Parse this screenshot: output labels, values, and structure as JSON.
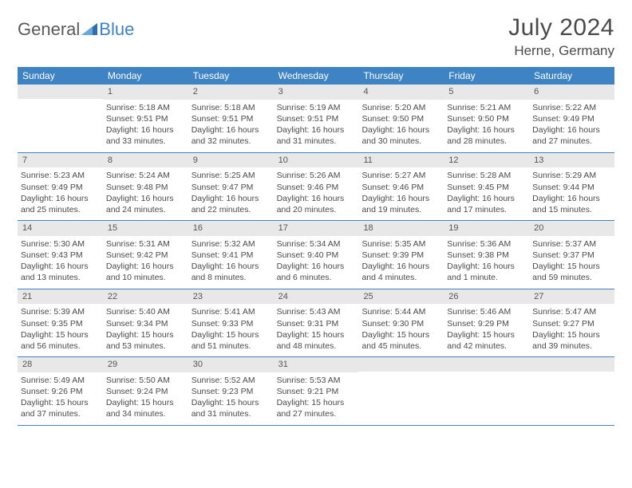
{
  "logo": {
    "gray": "General",
    "blue": "Blue"
  },
  "title": "July 2024",
  "location": "Herne, Germany",
  "colors": {
    "accent": "#3e83c4",
    "dayband": "#e8e8e8",
    "text": "#4a4a4a",
    "bg": "#ffffff"
  },
  "daysOfWeek": [
    "Sunday",
    "Monday",
    "Tuesday",
    "Wednesday",
    "Thursday",
    "Friday",
    "Saturday"
  ],
  "weeks": [
    [
      null,
      {
        "n": "1",
        "sr": "5:18 AM",
        "ss": "9:51 PM",
        "dl": "16 hours and 33 minutes."
      },
      {
        "n": "2",
        "sr": "5:18 AM",
        "ss": "9:51 PM",
        "dl": "16 hours and 32 minutes."
      },
      {
        "n": "3",
        "sr": "5:19 AM",
        "ss": "9:51 PM",
        "dl": "16 hours and 31 minutes."
      },
      {
        "n": "4",
        "sr": "5:20 AM",
        "ss": "9:50 PM",
        "dl": "16 hours and 30 minutes."
      },
      {
        "n": "5",
        "sr": "5:21 AM",
        "ss": "9:50 PM",
        "dl": "16 hours and 28 minutes."
      },
      {
        "n": "6",
        "sr": "5:22 AM",
        "ss": "9:49 PM",
        "dl": "16 hours and 27 minutes."
      }
    ],
    [
      {
        "n": "7",
        "sr": "5:23 AM",
        "ss": "9:49 PM",
        "dl": "16 hours and 25 minutes."
      },
      {
        "n": "8",
        "sr": "5:24 AM",
        "ss": "9:48 PM",
        "dl": "16 hours and 24 minutes."
      },
      {
        "n": "9",
        "sr": "5:25 AM",
        "ss": "9:47 PM",
        "dl": "16 hours and 22 minutes."
      },
      {
        "n": "10",
        "sr": "5:26 AM",
        "ss": "9:46 PM",
        "dl": "16 hours and 20 minutes."
      },
      {
        "n": "11",
        "sr": "5:27 AM",
        "ss": "9:46 PM",
        "dl": "16 hours and 19 minutes."
      },
      {
        "n": "12",
        "sr": "5:28 AM",
        "ss": "9:45 PM",
        "dl": "16 hours and 17 minutes."
      },
      {
        "n": "13",
        "sr": "5:29 AM",
        "ss": "9:44 PM",
        "dl": "16 hours and 15 minutes."
      }
    ],
    [
      {
        "n": "14",
        "sr": "5:30 AM",
        "ss": "9:43 PM",
        "dl": "16 hours and 13 minutes."
      },
      {
        "n": "15",
        "sr": "5:31 AM",
        "ss": "9:42 PM",
        "dl": "16 hours and 10 minutes."
      },
      {
        "n": "16",
        "sr": "5:32 AM",
        "ss": "9:41 PM",
        "dl": "16 hours and 8 minutes."
      },
      {
        "n": "17",
        "sr": "5:34 AM",
        "ss": "9:40 PM",
        "dl": "16 hours and 6 minutes."
      },
      {
        "n": "18",
        "sr": "5:35 AM",
        "ss": "9:39 PM",
        "dl": "16 hours and 4 minutes."
      },
      {
        "n": "19",
        "sr": "5:36 AM",
        "ss": "9:38 PM",
        "dl": "16 hours and 1 minute."
      },
      {
        "n": "20",
        "sr": "5:37 AM",
        "ss": "9:37 PM",
        "dl": "15 hours and 59 minutes."
      }
    ],
    [
      {
        "n": "21",
        "sr": "5:39 AM",
        "ss": "9:35 PM",
        "dl": "15 hours and 56 minutes."
      },
      {
        "n": "22",
        "sr": "5:40 AM",
        "ss": "9:34 PM",
        "dl": "15 hours and 53 minutes."
      },
      {
        "n": "23",
        "sr": "5:41 AM",
        "ss": "9:33 PM",
        "dl": "15 hours and 51 minutes."
      },
      {
        "n": "24",
        "sr": "5:43 AM",
        "ss": "9:31 PM",
        "dl": "15 hours and 48 minutes."
      },
      {
        "n": "25",
        "sr": "5:44 AM",
        "ss": "9:30 PM",
        "dl": "15 hours and 45 minutes."
      },
      {
        "n": "26",
        "sr": "5:46 AM",
        "ss": "9:29 PM",
        "dl": "15 hours and 42 minutes."
      },
      {
        "n": "27",
        "sr": "5:47 AM",
        "ss": "9:27 PM",
        "dl": "15 hours and 39 minutes."
      }
    ],
    [
      {
        "n": "28",
        "sr": "5:49 AM",
        "ss": "9:26 PM",
        "dl": "15 hours and 37 minutes."
      },
      {
        "n": "29",
        "sr": "5:50 AM",
        "ss": "9:24 PM",
        "dl": "15 hours and 34 minutes."
      },
      {
        "n": "30",
        "sr": "5:52 AM",
        "ss": "9:23 PM",
        "dl": "15 hours and 31 minutes."
      },
      {
        "n": "31",
        "sr": "5:53 AM",
        "ss": "9:21 PM",
        "dl": "15 hours and 27 minutes."
      },
      null,
      null,
      null
    ]
  ],
  "labels": {
    "sunrise": "Sunrise: ",
    "sunset": "Sunset: ",
    "daylight": "Daylight: "
  }
}
